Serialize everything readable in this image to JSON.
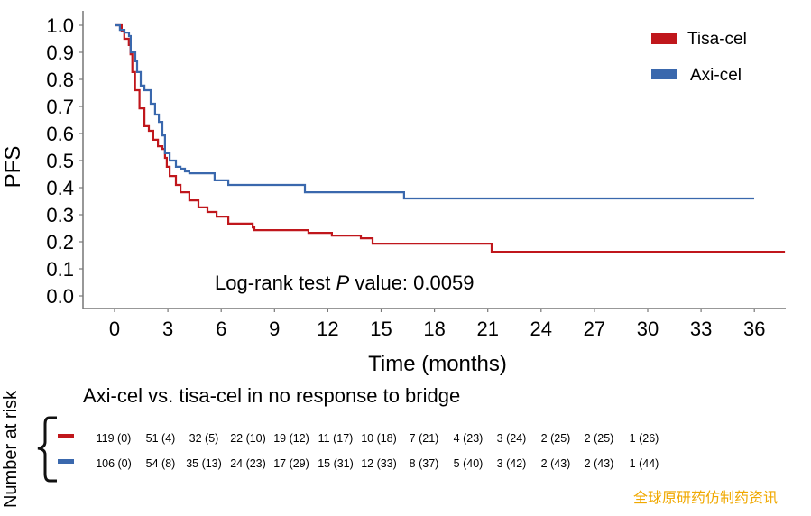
{
  "chart_data": {
    "type": "line",
    "subtype": "kaplan-meier-step",
    "ylabel": "PFS",
    "xlabel": "Time (months)",
    "xlim": [
      0,
      37.5
    ],
    "ylim": [
      0,
      1.0
    ],
    "x_ticks": [
      0,
      3,
      6,
      9,
      12,
      15,
      18,
      21,
      24,
      27,
      30,
      33,
      36
    ],
    "x_tick_labels": [
      "0",
      "3",
      "6",
      "9",
      "12",
      "15",
      "18",
      "21",
      "24",
      "27",
      "30",
      "33",
      "36"
    ],
    "y_ticks": [
      0.0,
      0.1,
      0.2,
      0.3,
      0.4,
      0.5,
      0.6,
      0.7,
      0.8,
      0.9,
      1.0
    ],
    "y_tick_labels": [
      "0.0",
      "0.1",
      "0.2",
      "0.3",
      "0.4",
      "0.5",
      "0.6",
      "0.7",
      "0.8",
      "0.9",
      "1.0"
    ],
    "grid": false,
    "legend_position": "top-right",
    "annotation": {
      "prefix": "Log-rank test ",
      "italic": "P",
      "suffix": " value: 0.0059"
    },
    "series": [
      {
        "name": "Tisa-cel",
        "color": "#c0171c",
        "points": [
          [
            0,
            1.0
          ],
          [
            0.4,
            0.977
          ],
          [
            0.55,
            0.95
          ],
          [
            0.8,
            0.927
          ],
          [
            0.9,
            0.893
          ],
          [
            1.0,
            0.827
          ],
          [
            1.15,
            0.76
          ],
          [
            1.4,
            0.693
          ],
          [
            1.68,
            0.627
          ],
          [
            1.93,
            0.61
          ],
          [
            2.18,
            0.577
          ],
          [
            2.44,
            0.553
          ],
          [
            2.69,
            0.543
          ],
          [
            2.84,
            0.51
          ],
          [
            2.94,
            0.477
          ],
          [
            3.1,
            0.443
          ],
          [
            3.45,
            0.41
          ],
          [
            3.71,
            0.383
          ],
          [
            4.21,
            0.353
          ],
          [
            4.72,
            0.327
          ],
          [
            5.23,
            0.31
          ],
          [
            5.74,
            0.293
          ],
          [
            6.4,
            0.267
          ],
          [
            7.77,
            0.253
          ],
          [
            7.87,
            0.243
          ],
          [
            10.81,
            0.243
          ],
          [
            10.91,
            0.233
          ],
          [
            12.18,
            0.233
          ],
          [
            12.23,
            0.223
          ],
          [
            13.76,
            0.223
          ],
          [
            13.86,
            0.213
          ],
          [
            14.47,
            0.213
          ],
          [
            14.52,
            0.193
          ],
          [
            21.12,
            0.193
          ],
          [
            21.22,
            0.163
          ],
          [
            37.72,
            0.163
          ]
        ]
      },
      {
        "name": "Axi-cel",
        "color": "#3a68ad",
        "points": [
          [
            0,
            1.0
          ],
          [
            0.3,
            0.983
          ],
          [
            0.56,
            0.973
          ],
          [
            0.81,
            0.96
          ],
          [
            0.91,
            0.9
          ],
          [
            1.17,
            0.867
          ],
          [
            1.27,
            0.827
          ],
          [
            1.47,
            0.777
          ],
          [
            1.68,
            0.76
          ],
          [
            1.93,
            0.76
          ],
          [
            2.03,
            0.71
          ],
          [
            2.28,
            0.67
          ],
          [
            2.49,
            0.643
          ],
          [
            2.69,
            0.593
          ],
          [
            2.84,
            0.527
          ],
          [
            3.1,
            0.5
          ],
          [
            3.45,
            0.477
          ],
          [
            3.71,
            0.47
          ],
          [
            3.96,
            0.46
          ],
          [
            4.21,
            0.453
          ],
          [
            5.48,
            0.453
          ],
          [
            5.63,
            0.427
          ],
          [
            6.4,
            0.41
          ],
          [
            10.61,
            0.41
          ],
          [
            10.71,
            0.383
          ],
          [
            16.24,
            0.383
          ],
          [
            16.29,
            0.36
          ],
          [
            35.99,
            0.36
          ]
        ]
      }
    ],
    "risk_table": {
      "y_label": "Number at risk",
      "title": "Axi-cel vs. tisa-cel in no response to bridge",
      "rows": [
        {
          "name": "Tisa-cel",
          "color": "#c0171c",
          "cells": [
            "119 (0)",
            "51 (4)",
            "32 (5)",
            "22 (10)",
            "19 (12)",
            "11 (17)",
            "10 (18)",
            "7 (21)",
            "4 (23)",
            "3 (24)",
            "2 (25)",
            "2 (25)",
            "1 (26)"
          ]
        },
        {
          "name": "Axi-cel",
          "color": "#3a68ad",
          "cells": [
            "106 (0)",
            "54 (8)",
            "35 (13)",
            "24 (23)",
            "17 (29)",
            "15 (31)",
            "12 (33)",
            "8 (37)",
            "5 (40)",
            "3 (42)",
            "2 (43)",
            "2 (43)",
            "1 (44)"
          ]
        }
      ]
    }
  },
  "watermark": "全球原研药仿制药资讯"
}
